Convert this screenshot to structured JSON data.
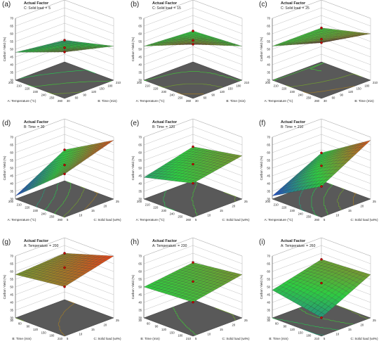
{
  "panels": [
    {
      "id": "a",
      "label": "(a)",
      "factor_title": "Actual Factor",
      "factor_name": "C: Solid load",
      "factor_value": "5",
      "ylabel": "Carbon Yield (%)",
      "xlabel": "A: Temperature (°C)",
      "zlabel": "B: Time (min)",
      "yticks": [
        "30",
        "35",
        "40",
        "45",
        "50",
        "55",
        "60",
        "65",
        "70"
      ],
      "xticks": [
        "200",
        "210",
        "220",
        "230",
        "240",
        "250",
        "260"
      ],
      "zticks": [
        "30",
        "60",
        "90",
        "120",
        "150",
        "180",
        "210"
      ]
    },
    {
      "id": "b",
      "label": "(b)",
      "factor_title": "Actual Factor",
      "factor_name": "C: Solid load",
      "factor_value": "15",
      "ylabel": "Carbon Yield (%)",
      "xlabel": "A: Temperature (°C)",
      "zlabel": "B: Time (min)",
      "yticks": [
        "30",
        "35",
        "40",
        "45",
        "50",
        "55",
        "60",
        "65",
        "70"
      ],
      "xticks": [
        "200",
        "210",
        "220",
        "230",
        "240",
        "250",
        "260"
      ],
      "zticks": [
        "30",
        "60",
        "90",
        "120",
        "150",
        "180",
        "210"
      ]
    },
    {
      "id": "c",
      "label": "(c)",
      "factor_title": "Actual Factor",
      "factor_name": "C: Solid load",
      "factor_value": "25",
      "ylabel": "Carbon Yield (%)",
      "xlabel": "A: Temperature (°C)",
      "zlabel": "B: Time (min)",
      "yticks": [
        "30",
        "35",
        "40",
        "45",
        "50",
        "55",
        "60",
        "65",
        "70"
      ],
      "xticks": [
        "200",
        "210",
        "220",
        "230",
        "240",
        "250",
        "260"
      ],
      "zticks": [
        "30",
        "60",
        "90",
        "120",
        "150",
        "180",
        "210"
      ]
    },
    {
      "id": "d",
      "label": "(d)",
      "factor_title": "Actual Factor",
      "factor_name": "B: Time",
      "factor_value": "30",
      "ylabel": "Carbon Yield (%)",
      "xlabel": "A: Temperature (°C)",
      "zlabel": "C: Solid load (wt%)",
      "yticks": [
        "30",
        "35",
        "40",
        "45",
        "50",
        "55",
        "60",
        "65",
        "70"
      ],
      "xticks": [
        "200",
        "210",
        "220",
        "230",
        "240",
        "250",
        "260"
      ],
      "zticks": [
        "5",
        "10",
        "15",
        "20",
        "25"
      ]
    },
    {
      "id": "e",
      "label": "(e)",
      "factor_title": "Actual Factor",
      "factor_name": "B: Time",
      "factor_value": "120",
      "ylabel": "Carbon Yield (%)",
      "xlabel": "A: Temperature (°C)",
      "zlabel": "C: Solid load (wt%)",
      "yticks": [
        "30",
        "35",
        "40",
        "45",
        "50",
        "55",
        "60",
        "65",
        "70"
      ],
      "xticks": [
        "200",
        "210",
        "220",
        "230",
        "240",
        "250",
        "260"
      ],
      "zticks": [
        "5",
        "10",
        "15",
        "20",
        "25"
      ]
    },
    {
      "id": "f",
      "label": "(f)",
      "factor_title": "Actual Factor",
      "factor_name": "B: Time",
      "factor_value": "210",
      "ylabel": "Carbon Yield (%)",
      "xlabel": "A: Temperature (°C)",
      "zlabel": "C: Solid load (wt%)",
      "yticks": [
        "30",
        "35",
        "40",
        "45",
        "50",
        "55",
        "60",
        "65",
        "70"
      ],
      "xticks": [
        "200",
        "210",
        "220",
        "230",
        "240",
        "250",
        "260"
      ],
      "zticks": [
        "5",
        "10",
        "15",
        "20",
        "25"
      ]
    },
    {
      "id": "g",
      "label": "(g)",
      "factor_title": "Actual Factor",
      "factor_name": "A: Temperature",
      "factor_value": "200",
      "ylabel": "Carbon Yield (%)",
      "xlabel": "B: Time (min)",
      "zlabel": "C: Solid load (wt%)",
      "yticks": [
        "30",
        "35",
        "40",
        "45",
        "50",
        "55",
        "60",
        "65",
        "70"
      ],
      "xticks": [
        "30",
        "60",
        "90",
        "120",
        "150",
        "180",
        "210"
      ],
      "zticks": [
        "5",
        "10",
        "15",
        "20",
        "25"
      ]
    },
    {
      "id": "h",
      "label": "(h)",
      "factor_title": "Actual Factor",
      "factor_name": "A: Temperature",
      "factor_value": "230",
      "ylabel": "Carbon Yield (%)",
      "xlabel": "B: Time (min)",
      "zlabel": "C: Solid load (wt%)",
      "yticks": [
        "30",
        "35",
        "40",
        "45",
        "50",
        "55",
        "60",
        "65",
        "70"
      ],
      "xticks": [
        "30",
        "60",
        "90",
        "120",
        "150",
        "180",
        "210"
      ],
      "zticks": [
        "5",
        "10",
        "15",
        "20",
        "25"
      ]
    },
    {
      "id": "i",
      "label": "(i)",
      "factor_title": "Actual Factor",
      "factor_name": "A: Temperature",
      "factor_value": "260",
      "ylabel": "Carbon Yield (%)",
      "xlabel": "B: Time (min)",
      "zlabel": "C: Solid load (wt%)",
      "yticks": [
        "30",
        "35",
        "40",
        "45",
        "50",
        "55",
        "60",
        "65",
        "70"
      ],
      "xticks": [
        "30",
        "60",
        "90",
        "120",
        "150",
        "180",
        "210"
      ],
      "zticks": [
        "5",
        "10",
        "15",
        "20",
        "25"
      ]
    }
  ],
  "colors": {
    "low": "#1f3bd6",
    "mid": "#2ecc40",
    "high": "#e8431a",
    "floor": "#595959",
    "grid": "#b0b0b0"
  },
  "chart_data": [
    {
      "type": "surface",
      "id": "a",
      "x": [
        200,
        260
      ],
      "z": [
        30,
        210
      ],
      "corner_values": {
        "x0z0": 60,
        "x0z1": 52,
        "x1z0": 48,
        "x1z1": 44
      },
      "saddle": 0,
      "ylim": [
        30,
        70
      ]
    },
    {
      "type": "surface",
      "id": "b",
      "x": [
        200,
        260
      ],
      "z": [
        30,
        210
      ],
      "corner_values": {
        "x0z0": 65,
        "x0z1": 52,
        "x1z0": 52,
        "x1z1": 50
      },
      "saddle": 2,
      "ylim": [
        30,
        70
      ]
    },
    {
      "type": "surface",
      "id": "c",
      "x": [
        200,
        260
      ],
      "z": [
        30,
        210
      ],
      "corner_values": {
        "x0z0": 66,
        "x0z1": 60,
        "x1z0": 52,
        "x1z1": 52
      },
      "saddle": -2,
      "ylim": [
        30,
        70
      ]
    },
    {
      "type": "surface",
      "id": "d",
      "x": [
        200,
        260
      ],
      "z": [
        5,
        25
      ],
      "corner_values": {
        "x0z0": 58,
        "x0z1": 68,
        "x1z0": 32,
        "x1z1": 50
      },
      "saddle": 0,
      "ylim": [
        30,
        70
      ]
    },
    {
      "type": "surface",
      "id": "e",
      "x": [
        200,
        260
      ],
      "z": [
        5,
        25
      ],
      "corner_values": {
        "x0z0": 52,
        "x0z1": 58,
        "x1z0": 44,
        "x1z1": 52
      },
      "saddle": 2,
      "ylim": [
        30,
        70
      ]
    },
    {
      "type": "surface",
      "id": "f",
      "x": [
        200,
        260
      ],
      "z": [
        5,
        25
      ],
      "corner_values": {
        "x0z0": 50,
        "x0z1": 68,
        "x1z0": 32,
        "x1z1": 48
      },
      "saddle": 4,
      "ylim": [
        30,
        70
      ]
    },
    {
      "type": "surface",
      "id": "g",
      "x": [
        30,
        210
      ],
      "z": [
        5,
        25
      ],
      "corner_values": {
        "x0z0": 62,
        "x0z1": 70,
        "x1z0": 58,
        "x1z1": 60
      },
      "saddle": 0,
      "ylim": [
        30,
        70
      ]
    },
    {
      "type": "surface",
      "id": "h",
      "x": [
        30,
        210
      ],
      "z": [
        5,
        25
      ],
      "corner_values": {
        "x0z0": 52,
        "x0z1": 58,
        "x1z0": 50,
        "x1z1": 54
      },
      "saddle": 0,
      "ylim": [
        30,
        70
      ]
    },
    {
      "type": "surface",
      "id": "i",
      "x": [
        30,
        210
      ],
      "z": [
        5,
        25
      ],
      "corner_values": {
        "x0z0": 42,
        "x0z1": 58,
        "x1z0": 48,
        "x1z1": 56
      },
      "saddle": 3,
      "ylim": [
        30,
        70
      ]
    }
  ]
}
